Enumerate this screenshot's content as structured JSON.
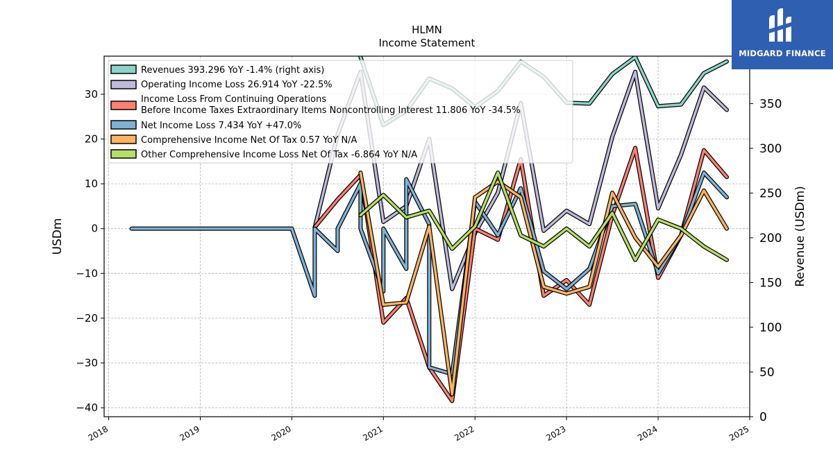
{
  "brand": {
    "name": "MIDGARD FINANCE",
    "icon": "midgard-m-logo-icon",
    "color": "#2f5fb0"
  },
  "chart_data": {
    "type": "line",
    "title": "HLMN",
    "subtitle": "Income Statement",
    "ylabel": "USDm",
    "ylabel_right": "Revenue (USDm)",
    "ylim": [
      -42,
      38.5
    ],
    "ylim_right": [
      0,
      403
    ],
    "xlim": [
      2017.95,
      2025.0
    ],
    "yticks": [
      -40,
      -30,
      -20,
      -10,
      0,
      10,
      20,
      30
    ],
    "yticks_right": [
      0,
      50,
      100,
      150,
      200,
      250,
      300,
      350
    ],
    "xticks": [
      2018,
      2019,
      2020,
      2021,
      2022,
      2023,
      2024,
      2025
    ],
    "grid": true,
    "legend_position": "top-left",
    "series": [
      {
        "name": "Revenues",
        "legend": "Revenues  393.296 YoY -1.4% (right axis)",
        "color": "#8dd3c7",
        "axis": "right",
        "points": [
          [
            2020.75,
            402
          ],
          [
            2021.0,
            326
          ],
          [
            2021.25,
            342
          ],
          [
            2021.5,
            378
          ],
          [
            2021.75,
            367
          ],
          [
            2022.0,
            346
          ],
          [
            2022.25,
            364
          ],
          [
            2022.5,
            397
          ],
          [
            2022.75,
            380
          ],
          [
            2023.0,
            351
          ],
          [
            2023.25,
            350
          ],
          [
            2023.5,
            383
          ],
          [
            2023.75,
            402
          ],
          [
            2024.0,
            347
          ],
          [
            2024.25,
            349
          ],
          [
            2024.5,
            384
          ],
          [
            2024.75,
            397
          ]
        ]
      },
      {
        "name": "Operating Income Loss",
        "legend": "Operating Income Loss  26.914 YoY -22.5%",
        "color": "#bebada",
        "axis": "left",
        "points": [
          [
            2020.25,
            0.2
          ],
          [
            2020.5,
            21
          ],
          [
            2020.75,
            35
          ],
          [
            2021.0,
            1.5
          ],
          [
            2021.25,
            5
          ],
          [
            2021.5,
            20
          ],
          [
            2021.75,
            -13.5
          ],
          [
            2022.0,
            -1
          ],
          [
            2022.25,
            8
          ],
          [
            2022.5,
            28
          ],
          [
            2022.75,
            -0.5
          ],
          [
            2023.0,
            4
          ],
          [
            2023.25,
            1
          ],
          [
            2023.5,
            20.5
          ],
          [
            2023.75,
            35
          ],
          [
            2024.0,
            4.5
          ],
          [
            2024.25,
            16.5
          ],
          [
            2024.5,
            31.5
          ],
          [
            2024.75,
            26.5
          ]
        ]
      },
      {
        "name": "Income Loss From Continuing Operations Before Income Taxes Extraordinary Items Noncontrolling Interest",
        "legend_line1": "Income Loss From Continuing Operations",
        "legend_line2": "Before Income Taxes Extraordinary Items Noncontrolling Interest  11.806 YoY -34.5%",
        "color": "#fb8072",
        "axis": "left",
        "points": [
          [
            2020.25,
            0.3
          ],
          [
            2020.5,
            6.5
          ],
          [
            2020.75,
            12
          ],
          [
            2021.0,
            -21
          ],
          [
            2021.25,
            -15.5
          ],
          [
            2021.5,
            -31
          ],
          [
            2021.75,
            -38.5
          ],
          [
            2022.0,
            0
          ],
          [
            2022.25,
            -2.5
          ],
          [
            2022.5,
            15.5
          ],
          [
            2022.75,
            -15
          ],
          [
            2023.0,
            -11.5
          ],
          [
            2023.25,
            -17
          ],
          [
            2023.5,
            3
          ],
          [
            2023.75,
            18
          ],
          [
            2024.0,
            -11
          ],
          [
            2024.25,
            -1.5
          ],
          [
            2024.5,
            17.5
          ],
          [
            2024.75,
            11.5
          ]
        ]
      },
      {
        "name": "Net Income Loss",
        "legend": "Net Income Loss  7.434 YoY +47.0%",
        "color": "#80b1d3",
        "axis": "left",
        "points": [
          [
            2018.25,
            0
          ],
          [
            2019.0,
            0
          ],
          [
            2020.0,
            0
          ],
          [
            2020.25,
            -15
          ],
          [
            2020.25,
            0
          ],
          [
            2020.5,
            -5
          ],
          [
            2020.5,
            0
          ],
          [
            2020.75,
            10
          ],
          [
            2020.75,
            0
          ],
          [
            2021.0,
            -14
          ],
          [
            2021.0,
            0
          ],
          [
            2021.25,
            -9
          ],
          [
            2021.25,
            11
          ],
          [
            2021.5,
            1
          ],
          [
            2021.5,
            -31
          ],
          [
            2021.75,
            -32.5
          ],
          [
            2022.0,
            6
          ],
          [
            2022.25,
            -1.5
          ],
          [
            2022.5,
            9
          ],
          [
            2022.75,
            -9.5
          ],
          [
            2023.0,
            -13.5
          ],
          [
            2023.25,
            -9
          ],
          [
            2023.5,
            5
          ],
          [
            2023.75,
            5.5
          ],
          [
            2024.0,
            -10
          ],
          [
            2024.25,
            -1.5
          ],
          [
            2024.5,
            12.5
          ],
          [
            2024.75,
            7
          ]
        ]
      },
      {
        "name": "Comprehensive Income Net Of Tax",
        "legend": "Comprehensive Income Net Of Tax  0.57 YoY N/A",
        "color": "#fdb462",
        "axis": "left",
        "points": [
          [
            2020.75,
            12.5
          ],
          [
            2021.0,
            -17
          ],
          [
            2021.25,
            -16.5
          ],
          [
            2021.5,
            0.5
          ],
          [
            2021.75,
            -37
          ],
          [
            2022.0,
            7
          ],
          [
            2022.25,
            10.5
          ],
          [
            2022.5,
            7
          ],
          [
            2022.75,
            -13
          ],
          [
            2023.0,
            -14.5
          ],
          [
            2023.25,
            -13
          ],
          [
            2023.5,
            8
          ],
          [
            2023.75,
            -2
          ],
          [
            2024.0,
            -8.5
          ],
          [
            2024.25,
            -1.5
          ],
          [
            2024.5,
            8.5
          ],
          [
            2024.75,
            0
          ]
        ]
      },
      {
        "name": "Other Comprehensive Income Loss Net Of Tax",
        "legend": "Other Comprehensive Income Loss Net Of Tax  -6.864 YoY N/A",
        "color": "#b3de69",
        "axis": "left",
        "points": [
          [
            2020.75,
            3
          ],
          [
            2021.0,
            7.5
          ],
          [
            2021.25,
            2.5
          ],
          [
            2021.5,
            4
          ],
          [
            2021.75,
            -4.5
          ],
          [
            2022.0,
            0.5
          ],
          [
            2022.25,
            12.5
          ],
          [
            2022.5,
            -1.5
          ],
          [
            2022.75,
            -4
          ],
          [
            2023.0,
            0
          ],
          [
            2023.25,
            -4
          ],
          [
            2023.5,
            3.5
          ],
          [
            2023.75,
            -7
          ],
          [
            2024.0,
            2
          ],
          [
            2024.25,
            0
          ],
          [
            2024.5,
            -4
          ],
          [
            2024.75,
            -7
          ]
        ]
      }
    ]
  }
}
